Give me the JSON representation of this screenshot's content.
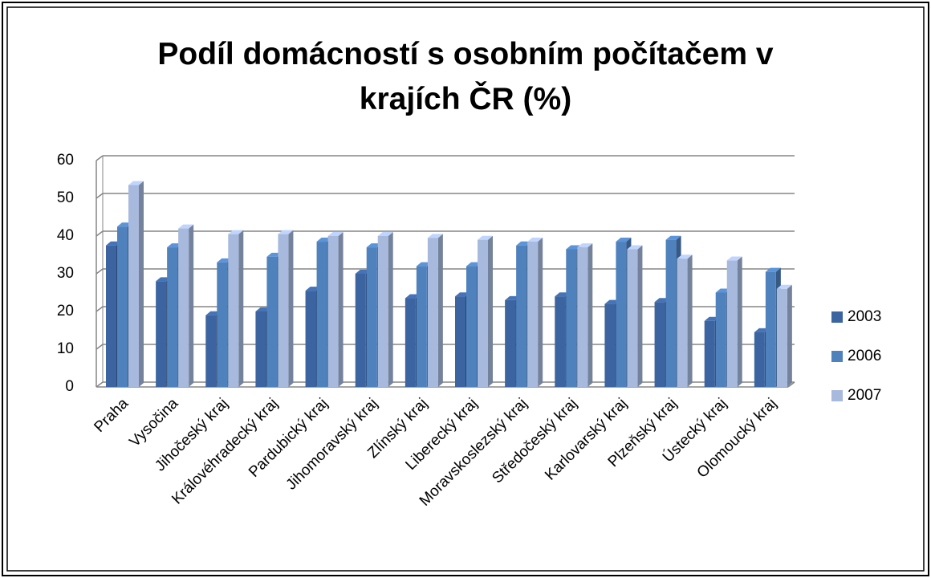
{
  "chart_data": {
    "type": "bar3d",
    "title": "Podíl domácností s osobním počítačem v krajích ČR (%)",
    "categories": [
      "Praha",
      "Vysočina",
      "Jihočeský kraj",
      "Královéhradecký kraj",
      "Pardubický kraj",
      "Jihomoravský kraj",
      "Zlínský kraj",
      "Liberecký kraj",
      "Moravskoslezský kraj",
      "Středočeský kraj",
      "Karlovarský kraj",
      "Plzeňský kraj",
      "Ústecký kraj",
      "Olomoucký kraj"
    ],
    "series": [
      {
        "name": "2003",
        "color": "#3b64a0",
        "values": [
          37.5,
          28,
          19,
          20,
          25.5,
          30,
          23.5,
          24,
          23,
          24,
          22,
          22.5,
          17.5,
          14.5
        ]
      },
      {
        "name": "2006",
        "color": "#4f81bd",
        "values": [
          42.5,
          37,
          33,
          34.5,
          38.5,
          37,
          32,
          32,
          37.5,
          36.5,
          38.5,
          39,
          25,
          30.5
        ]
      },
      {
        "name": "2007",
        "color": "#a7b9dd",
        "values": [
          53.5,
          42,
          40.5,
          40.5,
          40,
          40,
          39.5,
          39,
          38.5,
          37,
          36.5,
          34,
          33.5,
          26
        ]
      }
    ],
    "ylim": [
      0,
      60
    ],
    "yticks": [
      0,
      10,
      20,
      30,
      40,
      50,
      60
    ],
    "grid": true,
    "legend": "right"
  }
}
